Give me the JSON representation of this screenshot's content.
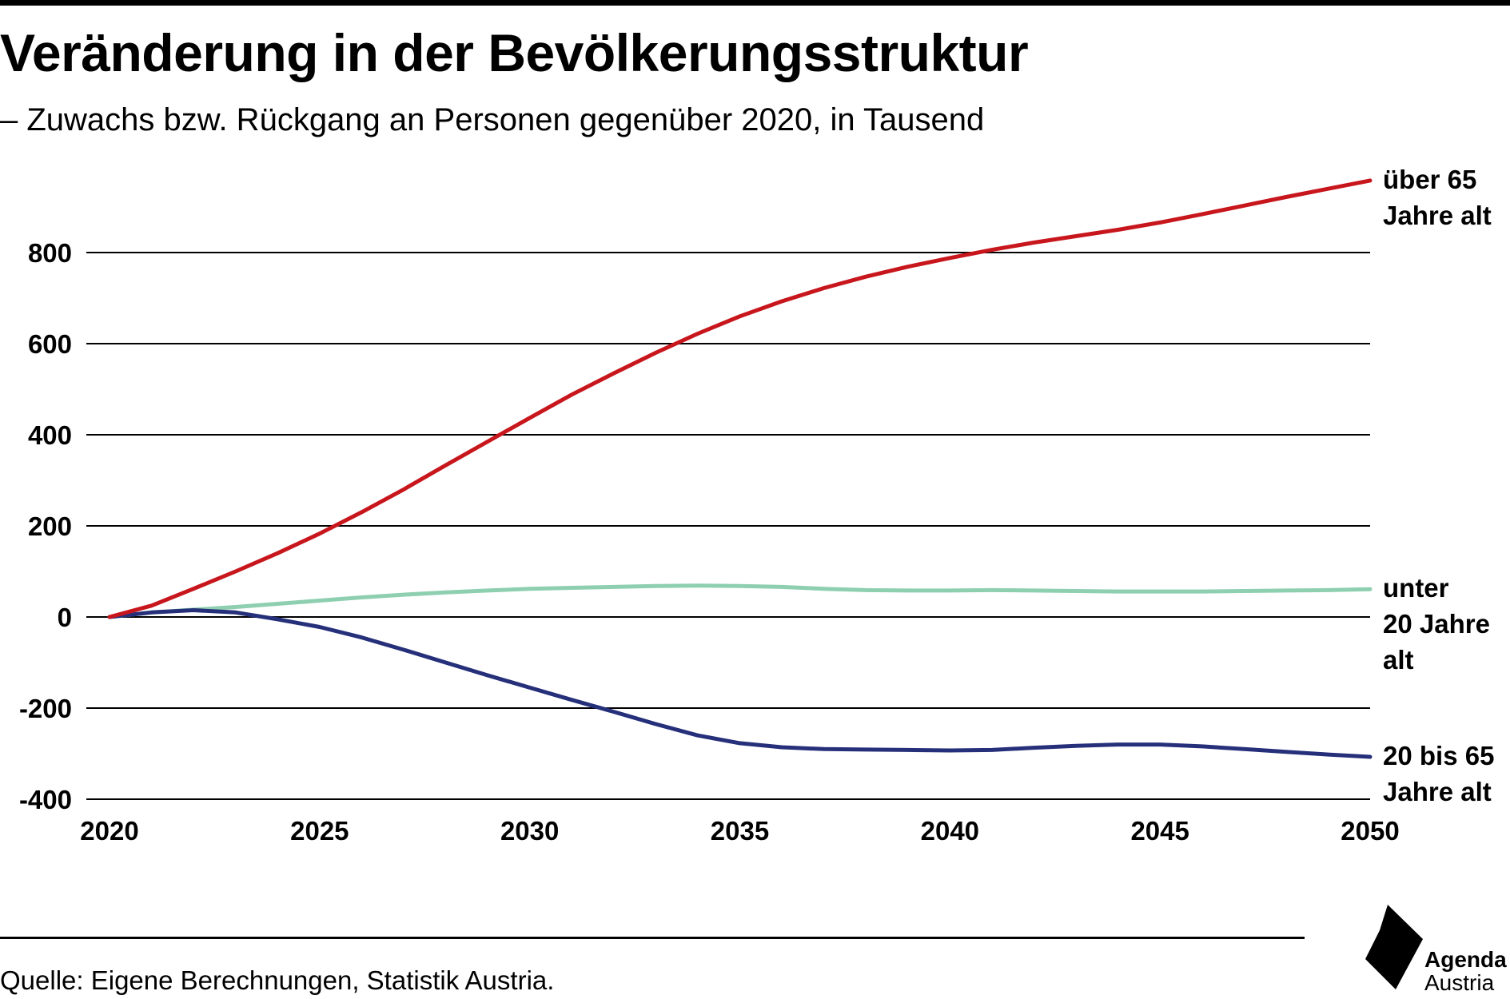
{
  "header": {
    "title": "Veränderung in der Bevölkerungsstruktur",
    "subtitle": "– Zuwachs bzw. Rückgang an Personen gegenüber 2020, in Tausend"
  },
  "footer": {
    "source": "Quelle: Eigene Berechnungen, Statistik Austria.",
    "logo_line1": "Agenda",
    "logo_line2": "Austria"
  },
  "chart_data": {
    "type": "line",
    "title": "Veränderung in der Bevölkerungsstruktur",
    "subtitle": "– Zuwachs bzw. Rückgang an Personen gegenüber 2020, in Tausend",
    "xlabel": "",
    "ylabel": "",
    "xlim": [
      2020,
      2050
    ],
    "ylim": [
      -400,
      960
    ],
    "x_ticks": [
      2020,
      2025,
      2030,
      2035,
      2040,
      2045,
      2050
    ],
    "y_ticks": [
      -400,
      -200,
      0,
      200,
      400,
      600,
      800
    ],
    "grid": "horizontal",
    "legend": "direct labels at line ends (right)",
    "x": [
      2020,
      2021,
      2022,
      2023,
      2024,
      2025,
      2026,
      2027,
      2028,
      2029,
      2030,
      2031,
      2032,
      2033,
      2034,
      2035,
      2036,
      2037,
      2038,
      2039,
      2040,
      2041,
      2042,
      2043,
      2044,
      2045,
      2046,
      2047,
      2048,
      2049,
      2050
    ],
    "series": [
      {
        "name": "über 65 Jahre alt",
        "label_lines": [
          "über 65",
          "Jahre alt"
        ],
        "color": "#c8161d",
        "values": [
          0,
          25,
          62,
          100,
          140,
          183,
          230,
          280,
          333,
          385,
          437,
          488,
          535,
          580,
          622,
          660,
          693,
          722,
          747,
          769,
          788,
          806,
          822,
          836,
          850,
          866,
          884,
          903,
          922,
          940,
          958
        ]
      },
      {
        "name": "unter 20 Jahre alt",
        "label_lines": [
          "unter",
          "20 Jahre",
          "alt"
        ],
        "color": "#8ecfb0",
        "values": [
          0,
          10,
          16,
          22,
          29,
          36,
          43,
          49,
          54,
          58,
          62,
          64,
          66,
          68,
          69,
          68,
          66,
          62,
          59,
          58,
          58,
          59,
          58,
          57,
          56,
          56,
          56,
          57,
          58,
          59,
          61
        ]
      },
      {
        "name": "20 bis 65 Jahre alt",
        "label_lines": [
          "20 bis 65",
          "Jahre alt"
        ],
        "color": "#26307a",
        "values": [
          0,
          10,
          15,
          10,
          -5,
          -22,
          -45,
          -72,
          -100,
          -128,
          -155,
          -182,
          -208,
          -235,
          -260,
          -277,
          -286,
          -290,
          -291,
          -292,
          -293,
          -292,
          -287,
          -283,
          -280,
          -280,
          -284,
          -290,
          -296,
          -302,
          -307
        ]
      }
    ]
  }
}
